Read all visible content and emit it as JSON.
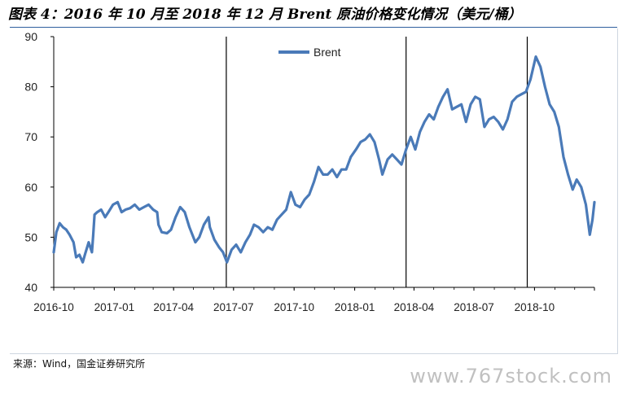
{
  "title": "图表 4：2016 年 10 月至 2018 年 12 月 Brent 原油价格变化情况（美元/桶）",
  "source": "来源：Wind，国金证券研究所",
  "watermark": "www.767stock.com",
  "colors": {
    "series": "#4a7ab8",
    "axis": "#000000",
    "vline": "#000000",
    "rule": "#2f5f9e"
  },
  "chart_data": {
    "type": "line",
    "title": "图表 4：2016 年 10 月至 2018 年 12 月 Brent 原油价格变化情况（美元/桶）",
    "xlabel": "",
    "ylabel": "",
    "ylim": [
      40,
      90
    ],
    "yticks": [
      40,
      50,
      60,
      70,
      80,
      90
    ],
    "xticks": [
      "2016-10",
      "2017-01",
      "2017-04",
      "2017-07",
      "2017-10",
      "2018-01",
      "2018-04",
      "2018-07",
      "2018-10"
    ],
    "xlim": [
      "2016-10-01",
      "2018-12-31"
    ],
    "grid": false,
    "legend": {
      "position": "top-center"
    },
    "vertical_lines": [
      "2017-06-20",
      "2018-03-20",
      "2018-09-20"
    ],
    "series": [
      {
        "name": "Brent",
        "points": [
          [
            "2016-10-01",
            47.0
          ],
          [
            "2016-10-05",
            51.0
          ],
          [
            "2016-10-10",
            52.8
          ],
          [
            "2016-10-15",
            52.0
          ],
          [
            "2016-10-20",
            51.5
          ],
          [
            "2016-10-25",
            50.5
          ],
          [
            "2016-10-31",
            49.0
          ],
          [
            "2016-11-04",
            46.0
          ],
          [
            "2016-11-09",
            46.5
          ],
          [
            "2016-11-14",
            45.0
          ],
          [
            "2016-11-18",
            46.8
          ],
          [
            "2016-11-23",
            49.0
          ],
          [
            "2016-11-28",
            47.0
          ],
          [
            "2016-11-30",
            50.5
          ],
          [
            "2016-12-02",
            54.5
          ],
          [
            "2016-12-06",
            55.0
          ],
          [
            "2016-12-12",
            55.5
          ],
          [
            "2016-12-18",
            54.0
          ],
          [
            "2016-12-23",
            55.0
          ],
          [
            "2016-12-30",
            56.5
          ],
          [
            "2017-01-06",
            57.0
          ],
          [
            "2017-01-12",
            55.0
          ],
          [
            "2017-01-18",
            55.5
          ],
          [
            "2017-01-25",
            55.8
          ],
          [
            "2017-02-01",
            56.5
          ],
          [
            "2017-02-08",
            55.5
          ],
          [
            "2017-02-15",
            56.0
          ],
          [
            "2017-02-22",
            56.5
          ],
          [
            "2017-03-01",
            55.5
          ],
          [
            "2017-03-07",
            55.0
          ],
          [
            "2017-03-09",
            52.5
          ],
          [
            "2017-03-14",
            51.0
          ],
          [
            "2017-03-22",
            50.8
          ],
          [
            "2017-03-28",
            51.5
          ],
          [
            "2017-04-04",
            54.0
          ],
          [
            "2017-04-11",
            56.0
          ],
          [
            "2017-04-18",
            55.0
          ],
          [
            "2017-04-25",
            52.0
          ],
          [
            "2017-05-04",
            49.0
          ],
          [
            "2017-05-10",
            50.0
          ],
          [
            "2017-05-17",
            52.5
          ],
          [
            "2017-05-24",
            54.0
          ],
          [
            "2017-05-26",
            52.0
          ],
          [
            "2017-06-02",
            49.5
          ],
          [
            "2017-06-09",
            48.0
          ],
          [
            "2017-06-15",
            47.0
          ],
          [
            "2017-06-21",
            45.0
          ],
          [
            "2017-06-28",
            47.5
          ],
          [
            "2017-07-05",
            48.5
          ],
          [
            "2017-07-12",
            47.0
          ],
          [
            "2017-07-19",
            49.0
          ],
          [
            "2017-07-26",
            50.5
          ],
          [
            "2017-08-01",
            52.5
          ],
          [
            "2017-08-08",
            52.0
          ],
          [
            "2017-08-15",
            51.0
          ],
          [
            "2017-08-22",
            52.0
          ],
          [
            "2017-08-29",
            51.5
          ],
          [
            "2017-09-05",
            53.5
          ],
          [
            "2017-09-12",
            54.5
          ],
          [
            "2017-09-19",
            55.5
          ],
          [
            "2017-09-26",
            59.0
          ],
          [
            "2017-10-03",
            56.5
          ],
          [
            "2017-10-10",
            56.0
          ],
          [
            "2017-10-17",
            57.5
          ],
          [
            "2017-10-24",
            58.5
          ],
          [
            "2017-10-31",
            61.0
          ],
          [
            "2017-11-07",
            64.0
          ],
          [
            "2017-11-14",
            62.5
          ],
          [
            "2017-11-21",
            62.5
          ],
          [
            "2017-11-28",
            63.5
          ],
          [
            "2017-12-05",
            62.0
          ],
          [
            "2017-12-12",
            63.5
          ],
          [
            "2017-12-19",
            63.5
          ],
          [
            "2017-12-26",
            66.0
          ],
          [
            "2018-01-03",
            67.5
          ],
          [
            "2018-01-10",
            69.0
          ],
          [
            "2018-01-17",
            69.5
          ],
          [
            "2018-01-24",
            70.5
          ],
          [
            "2018-01-31",
            69.0
          ],
          [
            "2018-02-07",
            65.5
          ],
          [
            "2018-02-12",
            62.5
          ],
          [
            "2018-02-20",
            65.5
          ],
          [
            "2018-02-27",
            66.5
          ],
          [
            "2018-03-06",
            65.5
          ],
          [
            "2018-03-13",
            64.5
          ],
          [
            "2018-03-20",
            67.5
          ],
          [
            "2018-03-27",
            70.0
          ],
          [
            "2018-04-03",
            67.5
          ],
          [
            "2018-04-10",
            71.0
          ],
          [
            "2018-04-17",
            73.0
          ],
          [
            "2018-04-24",
            74.5
          ],
          [
            "2018-05-01",
            73.5
          ],
          [
            "2018-05-08",
            76.0
          ],
          [
            "2018-05-15",
            78.0
          ],
          [
            "2018-05-22",
            79.5
          ],
          [
            "2018-05-29",
            75.5
          ],
          [
            "2018-06-05",
            76.0
          ],
          [
            "2018-06-12",
            76.5
          ],
          [
            "2018-06-19",
            73.0
          ],
          [
            "2018-06-26",
            76.5
          ],
          [
            "2018-07-03",
            78.0
          ],
          [
            "2018-07-10",
            77.5
          ],
          [
            "2018-07-17",
            72.0
          ],
          [
            "2018-07-24",
            73.5
          ],
          [
            "2018-07-31",
            74.0
          ],
          [
            "2018-08-07",
            73.0
          ],
          [
            "2018-08-14",
            71.5
          ],
          [
            "2018-08-21",
            73.5
          ],
          [
            "2018-08-28",
            77.0
          ],
          [
            "2018-09-04",
            78.0
          ],
          [
            "2018-09-11",
            78.5
          ],
          [
            "2018-09-18",
            79.0
          ],
          [
            "2018-09-25",
            81.5
          ],
          [
            "2018-10-03",
            86.0
          ],
          [
            "2018-10-10",
            84.0
          ],
          [
            "2018-10-17",
            80.0
          ],
          [
            "2018-10-24",
            76.5
          ],
          [
            "2018-10-31",
            75.0
          ],
          [
            "2018-11-07",
            72.0
          ],
          [
            "2018-11-14",
            66.0
          ],
          [
            "2018-11-21",
            62.5
          ],
          [
            "2018-11-28",
            59.5
          ],
          [
            "2018-12-04",
            61.5
          ],
          [
            "2018-12-11",
            60.0
          ],
          [
            "2018-12-18",
            56.5
          ],
          [
            "2018-12-24",
            50.5
          ],
          [
            "2018-12-28",
            53.5
          ],
          [
            "2018-12-31",
            57.0
          ]
        ]
      }
    ]
  }
}
